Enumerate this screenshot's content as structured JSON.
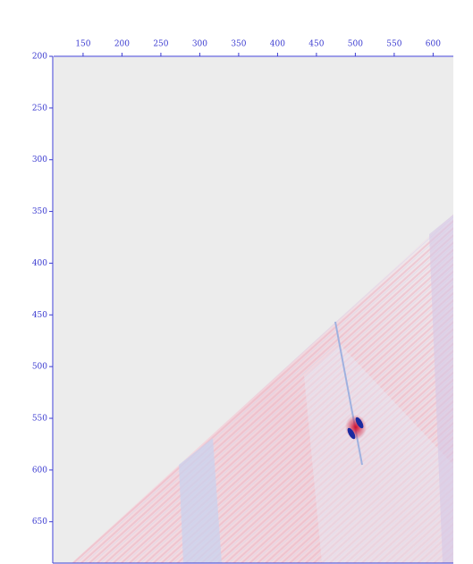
{
  "chart_data": {
    "type": "image",
    "xlim": [
      111,
      626
    ],
    "xticks": [
      150,
      200,
      250,
      300,
      350,
      400,
      450,
      500,
      550,
      600
    ],
    "ylim": [
      690,
      200
    ],
    "yticks": [
      200,
      250,
      300,
      350,
      400,
      450,
      500,
      550,
      600,
      650
    ],
    "color": "#3a3ad0"
  }
}
